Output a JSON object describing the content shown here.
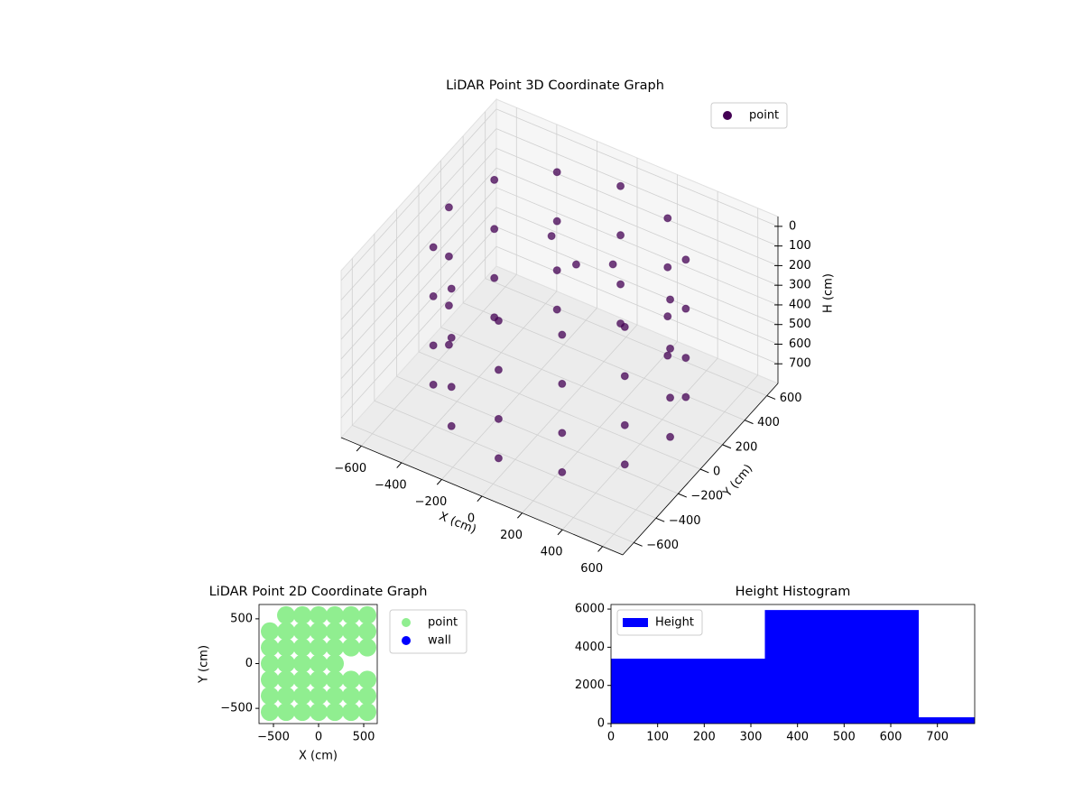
{
  "chart_data": [
    {
      "type": "scatter3d",
      "title": "LiDAR Point 3D Coordinate Graph",
      "xlabel": "X (cm)",
      "ylabel": "Y (cm)",
      "zlabel": "H (cm)",
      "series": [
        {
          "name": "point",
          "color": "#440154",
          "x": [
            550,
            476,
            275,
            0,
            -275,
            -476,
            -550,
            -476,
            -275,
            0,
            275,
            476,
            550,
            476,
            275,
            0,
            -275,
            -476,
            -550,
            -476,
            -275,
            0,
            275,
            476,
            550,
            476,
            275,
            0,
            -275,
            -476,
            -550,
            -476,
            -275,
            0,
            275,
            476,
            550,
            476,
            275,
            0,
            -275,
            -476,
            -550,
            -476,
            -275,
            0,
            275,
            476,
            -150,
            0,
            100
          ],
          "y": [
            0,
            275,
            476,
            550,
            476,
            275,
            0,
            -275,
            -476,
            -550,
            -476,
            -275,
            0,
            275,
            476,
            550,
            476,
            275,
            0,
            -275,
            -476,
            -550,
            -476,
            -275,
            0,
            275,
            476,
            550,
            476,
            275,
            0,
            -275,
            -476,
            -550,
            -476,
            -275,
            0,
            275,
            476,
            550,
            476,
            275,
            0,
            -275,
            -476,
            -550,
            -476,
            -275,
            200,
            150,
            300
          ],
          "z": [
            0,
            0,
            0,
            0,
            0,
            0,
            0,
            0,
            0,
            0,
            0,
            0,
            250,
            250,
            250,
            250,
            250,
            250,
            250,
            250,
            250,
            250,
            250,
            250,
            500,
            500,
            500,
            500,
            500,
            500,
            500,
            500,
            500,
            500,
            500,
            500,
            700,
            700,
            700,
            700,
            700,
            700,
            700,
            700,
            700,
            700,
            700,
            700,
            100,
            150,
            200
          ]
        }
      ],
      "xlim": [
        -700,
        700
      ],
      "ylim": [
        -700,
        700
      ],
      "zlim": [
        -50,
        800
      ],
      "z_inverted": true,
      "xticks": [
        {
          "value": -600,
          "label": "−600"
        },
        {
          "value": -400,
          "label": "−400"
        },
        {
          "value": -200,
          "label": "−200"
        },
        0,
        200,
        400,
        600
      ],
      "yticks": [
        {
          "value": -600,
          "label": "−600"
        },
        {
          "value": -400,
          "label": "−400"
        },
        {
          "value": -200,
          "label": "−200"
        },
        0,
        200,
        400,
        600
      ],
      "zticks": [
        0,
        100,
        200,
        300,
        400,
        500,
        600,
        700
      ],
      "grid": true,
      "legend": "upper right"
    },
    {
      "type": "scatter",
      "title": "LiDAR Point 2D Coordinate Graph",
      "xlabel": "X (cm)",
      "ylabel": "Y (cm)",
      "series": [
        {
          "name": "point",
          "color": "#90ee90",
          "x": [
            -360,
            -180,
            0,
            180,
            360,
            540,
            -540,
            -360,
            -180,
            0,
            180,
            360,
            540,
            -540,
            -360,
            -180,
            0,
            180,
            360,
            540,
            -540,
            -360,
            -180,
            0,
            180,
            -540,
            -360,
            -180,
            0,
            180,
            360,
            540,
            -540,
            -360,
            -180,
            0,
            180,
            360,
            540,
            -540,
            -360,
            -180,
            0,
            180,
            360,
            540
          ],
          "y": [
            540,
            540,
            540,
            540,
            540,
            540,
            360,
            360,
            360,
            360,
            360,
            360,
            360,
            180,
            180,
            180,
            180,
            180,
            180,
            180,
            0,
            0,
            0,
            0,
            0,
            -180,
            -180,
            -180,
            -180,
            -180,
            -180,
            -180,
            -360,
            -360,
            -360,
            -360,
            -360,
            -360,
            -360,
            -540,
            -540,
            -540,
            -540,
            -540,
            -540,
            -540
          ]
        },
        {
          "name": "wall",
          "color": "#0000ff",
          "x": [],
          "y": []
        }
      ],
      "xlim": [
        -660,
        650
      ],
      "ylim": [
        -670,
        660
      ],
      "xticks": [
        {
          "value": -500,
          "label": "−500"
        },
        0,
        500
      ],
      "yticks": [
        {
          "value": -500,
          "label": "−500"
        },
        0,
        500
      ],
      "legend": "outside right"
    },
    {
      "type": "histogram",
      "title": "Height Histogram",
      "series": [
        {
          "name": "Height",
          "color": "#0000ff",
          "bins": [
            0,
            330,
            660,
            780
          ],
          "counts": [
            3400,
            5950,
            330
          ]
        }
      ],
      "xlim": [
        0,
        780
      ],
      "ylim": [
        0,
        6240
      ],
      "xticks": [
        0,
        100,
        200,
        300,
        400,
        500,
        600,
        700
      ],
      "yticks": [
        0,
        2000,
        4000,
        6000
      ],
      "legend": "upper left"
    }
  ]
}
